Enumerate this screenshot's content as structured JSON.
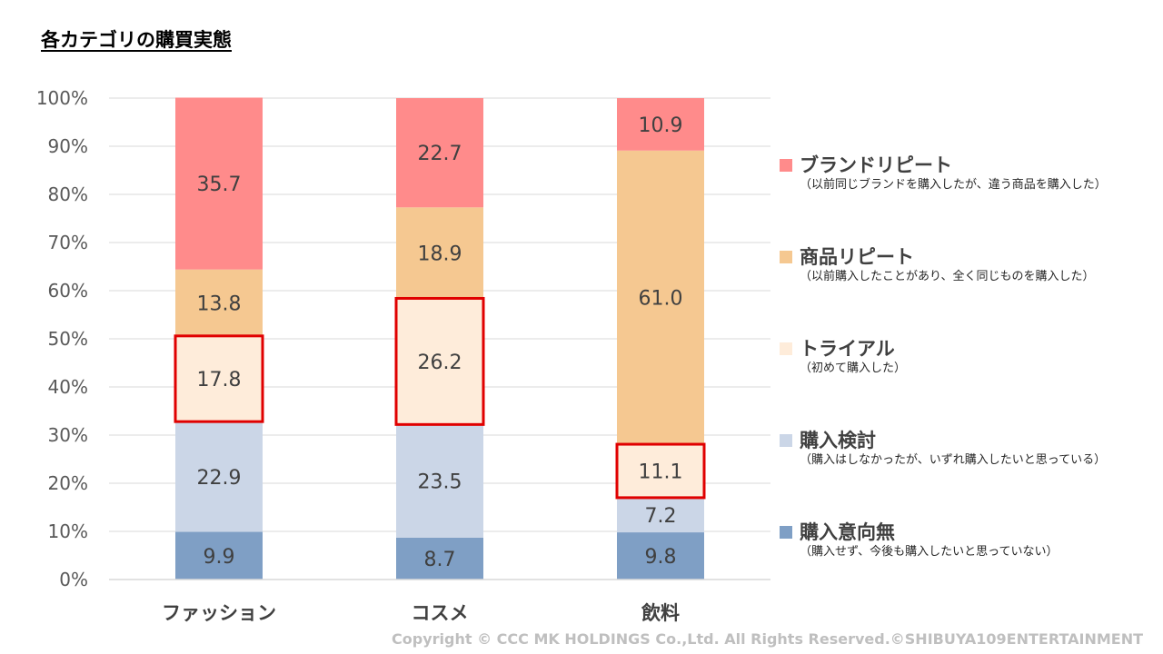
{
  "title": "各カテゴリの購買実態",
  "copyright": "Copyright © CCC MK HOLDINGS Co.,Ltd. All Rights Reserved.©SHIBUYA109ENTERTAINMENT",
  "legend": [
    {
      "name": "ブランドリピート",
      "sub": "（以前同じブランドを購入したが、違う商品を購入した）",
      "color": "#ff8b8b"
    },
    {
      "name": "商品リピート",
      "sub": "（以前購入したことがあり、全く同じものを購入した）",
      "color": "#f5c891"
    },
    {
      "name": "トライアル",
      "sub": "（初めて購入した）",
      "color": "#feecda"
    },
    {
      "name": "購入検討",
      "sub": "（購入はしなかったが、いずれ購入したいと思っている）",
      "color": "#cbd6e7"
    },
    {
      "name": "購入意向無",
      "sub": "（購入せず、今後も購入したいと思っていない）",
      "color": "#7f9fc5"
    }
  ],
  "chart_data": {
    "type": "bar",
    "stacked": true,
    "categories": [
      "ファッション",
      "コスメ",
      "飲料"
    ],
    "series": [
      {
        "name": "購入意向無",
        "values": [
          9.9,
          8.7,
          9.8
        ],
        "color": "#7f9fc5"
      },
      {
        "name": "購入検討",
        "values": [
          22.9,
          23.5,
          7.2
        ],
        "color": "#cbd6e7"
      },
      {
        "name": "トライアル",
        "values": [
          17.8,
          26.2,
          11.1
        ],
        "color": "#feecda",
        "highlight": true,
        "highlight_color": "#e00000"
      },
      {
        "name": "商品リピート",
        "values": [
          13.8,
          18.9,
          61.0
        ],
        "color": "#f5c891"
      },
      {
        "name": "ブランドリピート",
        "values": [
          35.7,
          22.7,
          10.9
        ],
        "color": "#ff8b8b"
      }
    ],
    "y_ticks": [
      "0%",
      "10%",
      "20%",
      "30%",
      "40%",
      "50%",
      "60%",
      "70%",
      "80%",
      "90%",
      "100%"
    ],
    "ylim": [
      0,
      100
    ],
    "grid": true,
    "legend_position": "right"
  }
}
